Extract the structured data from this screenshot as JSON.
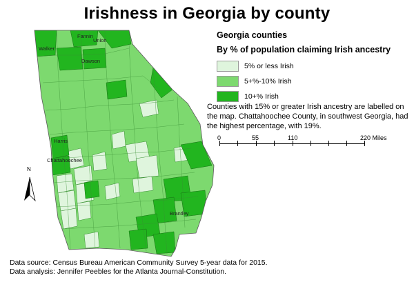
{
  "title": "Irishness in Georgia by county",
  "legend": {
    "title": "Georgia counties",
    "subtitle": "By % of population claiming Irish ancestry",
    "items": [
      {
        "label": "5% or less Irish",
        "color": "#dff5dd"
      },
      {
        "label": "5+%-10% Irish",
        "color": "#7dd96f"
      },
      {
        "label": "10+% Irish",
        "color": "#22b51f"
      }
    ]
  },
  "note": "Counties with 15% or greater Irish ancestry are labelled on the map. Chattahoochee County, in southwest Georgia, had the highest percentage, with 19%.",
  "scale": {
    "labels": [
      "0",
      "55",
      "110",
      "220 Miles"
    ]
  },
  "county_labels": {
    "fannin": "Fannin",
    "union": "Union",
    "walker": "Walker",
    "dawson": "Dawson",
    "harris": "Harris",
    "chattahoochee": "Chattahoochee",
    "brantley": "Brantley"
  },
  "north_label": "N",
  "source": {
    "line1": "Data source: Census Bureau American Community Survey 5-year data for 2015.",
    "line2": "Data analysis: Jennifer Peebles for the Atlanta Journal-Constitution."
  }
}
